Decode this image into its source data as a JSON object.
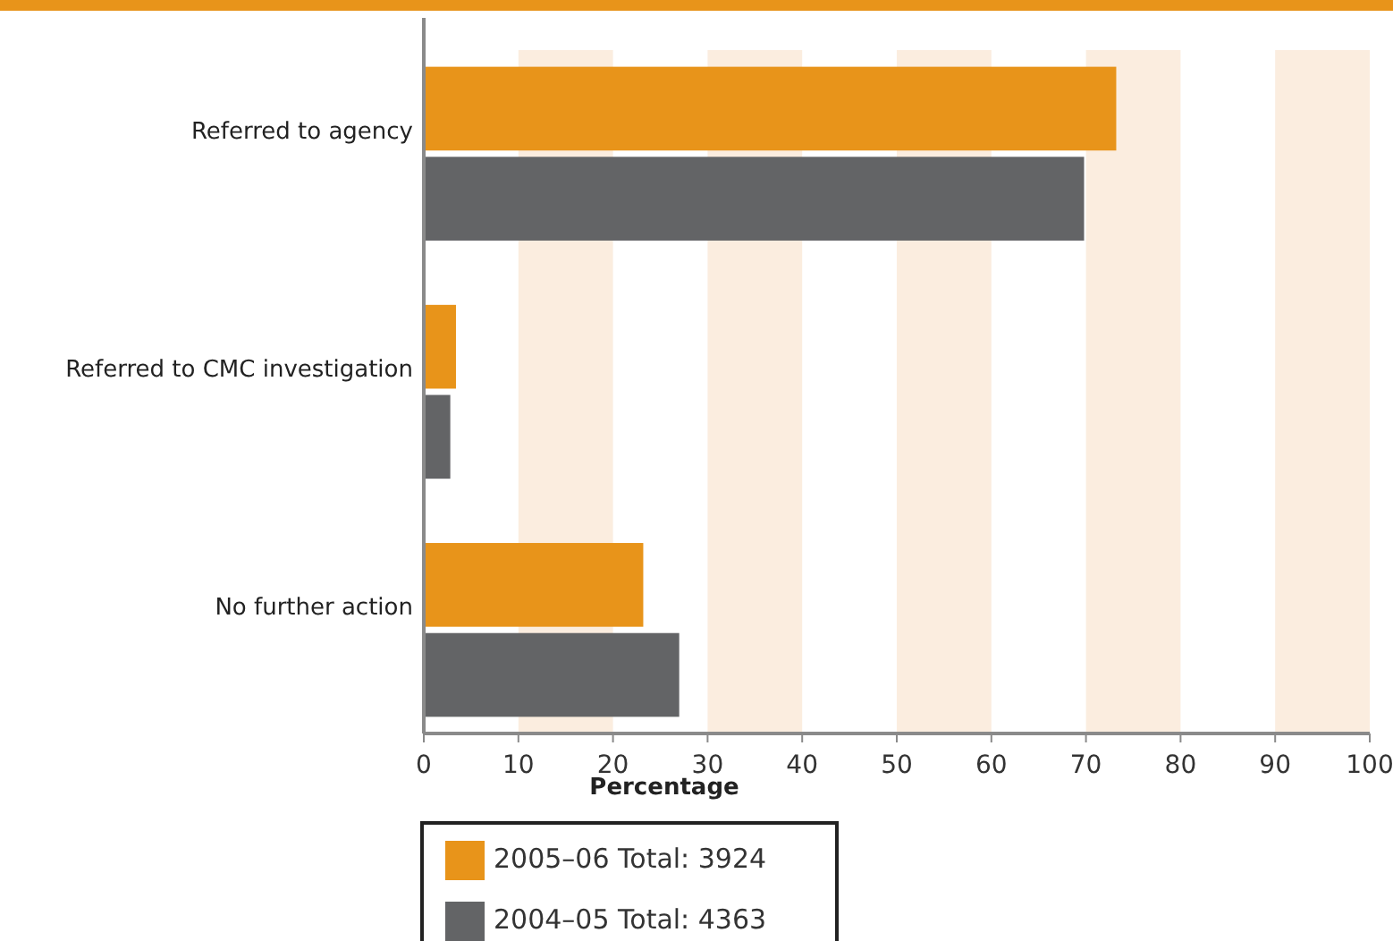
{
  "chart_data": {
    "type": "bar",
    "orientation": "horizontal",
    "categories": [
      "Referred to agency",
      "Referred to CMC investigation",
      "No further action"
    ],
    "series": [
      {
        "name": "2005–06 Total: 3924",
        "color": "#e8941a",
        "values": [
          73.2,
          3.4,
          23.2
        ]
      },
      {
        "name": "2004–05 Total: 4363",
        "color": "#636466",
        "values": [
          69.8,
          2.8,
          27
        ]
      }
    ],
    "xlabel": "Percentage",
    "xlim": [
      0,
      100
    ],
    "xticks": [
      0,
      10,
      20,
      30,
      40,
      50,
      60,
      70,
      80,
      90,
      100
    ],
    "bands": [
      {
        "axis": "x",
        "from": 10,
        "to": 20,
        "color": "#fbeddf"
      },
      {
        "axis": "x",
        "from": 30,
        "to": 40,
        "color": "#fbeddf"
      },
      {
        "axis": "x",
        "from": 50,
        "to": 60,
        "color": "#fbeddf"
      },
      {
        "axis": "x",
        "from": 70,
        "to": 80,
        "color": "#fbeddf"
      },
      {
        "axis": "x",
        "from": 90,
        "to": 100,
        "color": "#fbeddf"
      }
    ],
    "legend": "bottom"
  }
}
